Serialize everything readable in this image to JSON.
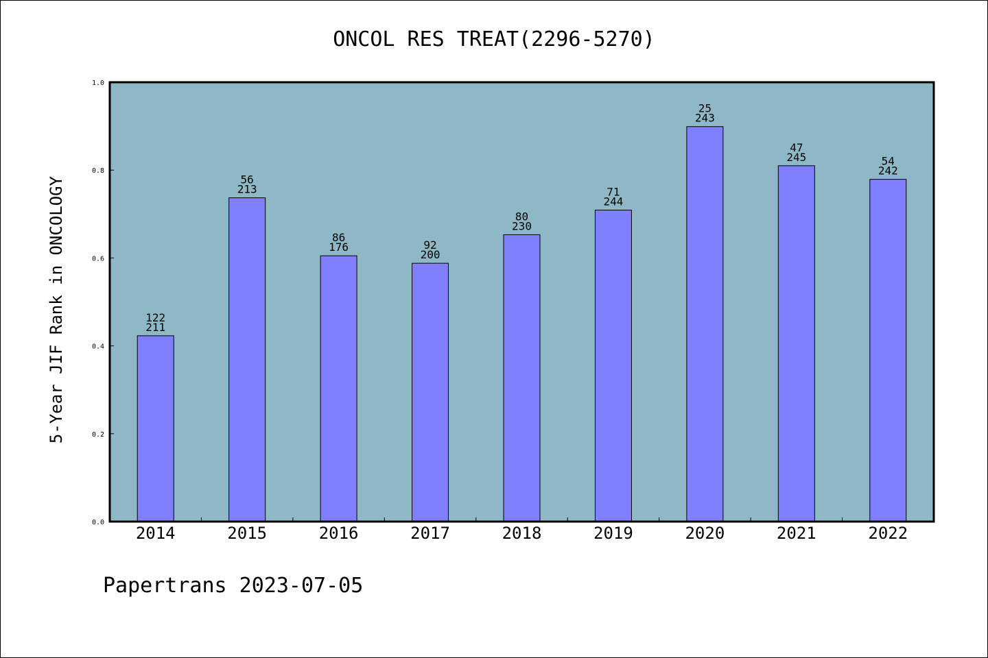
{
  "chart_data": {
    "type": "bar",
    "title": "ONCOL RES TREAT(2296-5270)",
    "xlabel": "",
    "ylabel": "5-Year JIF Rank in ONCOLOGY",
    "ylim": [
      0,
      1.0
    ],
    "yticks": [
      "0.0",
      "0.2",
      "0.4",
      "0.6",
      "0.8",
      "1.0"
    ],
    "categories": [
      "2014",
      "2015",
      "2016",
      "2017",
      "2018",
      "2019",
      "2020",
      "2021",
      "2022"
    ],
    "values": [
      0.423,
      0.737,
      0.605,
      0.588,
      0.653,
      0.709,
      0.899,
      0.81,
      0.779
    ],
    "labels_top": [
      "122",
      "56",
      "86",
      "92",
      "80",
      "71",
      "25",
      "47",
      "54"
    ],
    "labels_bottom": [
      "211",
      "213",
      "176",
      "200",
      "230",
      "244",
      "243",
      "245",
      "242"
    ],
    "grid": false,
    "colors": {
      "plot_bg": "#8fb8c6",
      "bar": "#8080ff",
      "bar_edge": "#000000"
    }
  },
  "footer": "Papertrans 2023-07-05"
}
